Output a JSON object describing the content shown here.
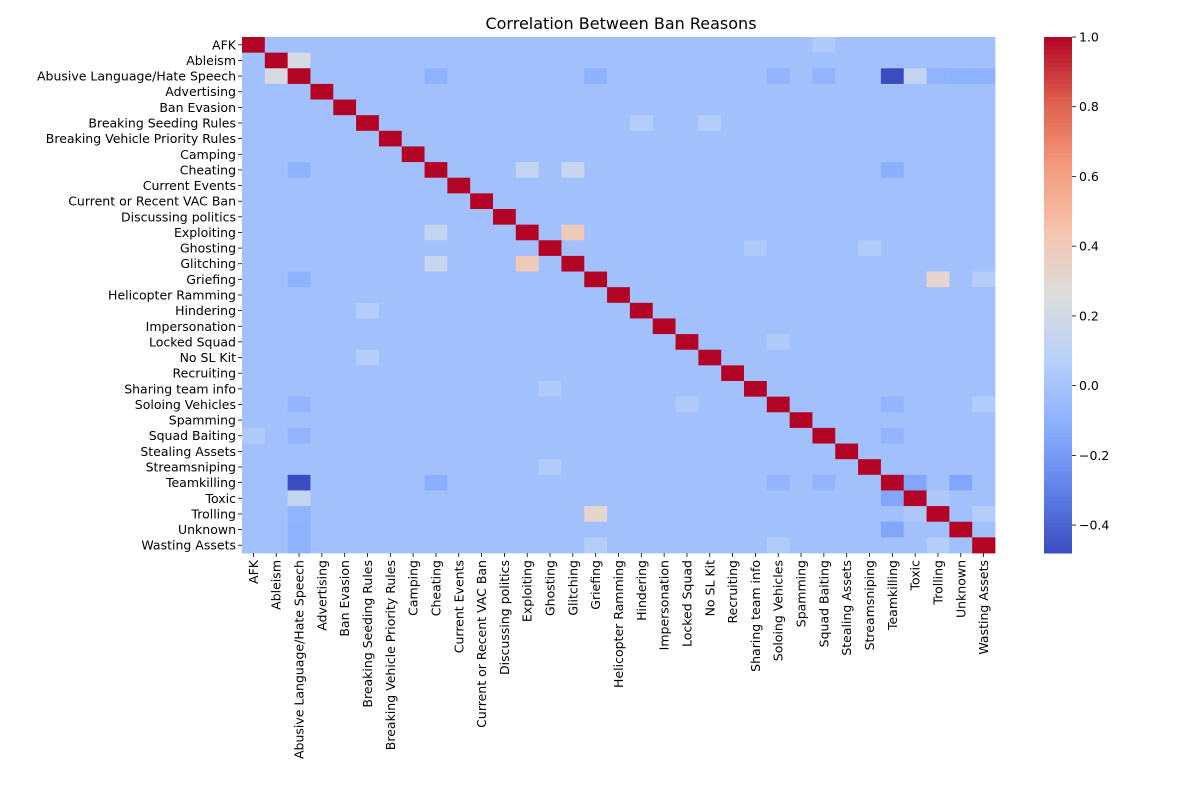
{
  "chart_data": {
    "type": "heatmap",
    "title": "Correlation Between Ban Reasons",
    "xlabel": "",
    "ylabel": "",
    "labels": [
      "AFK",
      "Ableism",
      "Abusive Language/Hate Speech",
      "Advertising",
      "Ban Evasion",
      "Breaking Seeding Rules",
      "Breaking Vehicle Priority Rules",
      "Camping",
      "Cheating",
      "Current Events",
      "Current or Recent VAC Ban",
      "Discussing politics",
      "Exploiting",
      "Ghosting",
      "Glitching",
      "Griefing",
      "Helicopter Ramming",
      "Hindering",
      "Impersonation",
      "Locked Squad",
      "No SL Kit",
      "Recruiting",
      "Sharing team info",
      "Soloing Vehicles",
      "Spamming",
      "Squad Baiting",
      "Stealing Assets",
      "Streamsniping",
      "Teamkilling",
      "Toxic",
      "Trolling",
      "Unknown",
      "Wasting Assets"
    ],
    "diagonal": 1.0,
    "default_value": -0.02,
    "notable_correlations": [
      [
        "Ableism",
        "Abusive Language/Hate Speech",
        0.22
      ],
      [
        "Abusive Language/Hate Speech",
        "Teamkilling",
        -0.48
      ],
      [
        "Abusive Language/Hate Speech",
        "Toxic",
        0.13
      ],
      [
        "Abusive Language/Hate Speech",
        "Cheating",
        -0.1
      ],
      [
        "Abusive Language/Hate Speech",
        "Griefing",
        -0.1
      ],
      [
        "Abusive Language/Hate Speech",
        "Unknown",
        -0.1
      ],
      [
        "Abusive Language/Hate Speech",
        "Wasting Assets",
        -0.1
      ],
      [
        "Abusive Language/Hate Speech",
        "Trolling",
        -0.09
      ],
      [
        "Abusive Language/Hate Speech",
        "Soloing Vehicles",
        -0.08
      ],
      [
        "Abusive Language/Hate Speech",
        "Squad Baiting",
        -0.08
      ],
      [
        "Cheating",
        "Exploiting",
        0.13
      ],
      [
        "Cheating",
        "Glitching",
        0.15
      ],
      [
        "Cheating",
        "Teamkilling",
        -0.12
      ],
      [
        "Exploiting",
        "Glitching",
        0.4
      ],
      [
        "Griefing",
        "Trolling",
        0.32
      ],
      [
        "Griefing",
        "Wasting Assets",
        0.06
      ],
      [
        "Breaking Seeding Rules",
        "Hindering",
        0.06
      ],
      [
        "Breaking Seeding Rules",
        "No SL Kit",
        0.06
      ],
      [
        "Ghosting",
        "Streamsniping",
        0.05
      ],
      [
        "Ghosting",
        "Sharing team info",
        0.04
      ],
      [
        "Teamkilling",
        "Toxic",
        -0.15
      ],
      [
        "Teamkilling",
        "Unknown",
        -0.15
      ],
      [
        "Teamkilling",
        "Soloing Vehicles",
        -0.08
      ],
      [
        "Teamkilling",
        "Squad Baiting",
        -0.08
      ],
      [
        "AFK",
        "Squad Baiting",
        0.04
      ],
      [
        "Soloing Vehicles",
        "Wasting Assets",
        0.05
      ],
      [
        "Locked Squad",
        "Soloing Vehicles",
        0.04
      ],
      [
        "Trolling",
        "Wasting Assets",
        0.06
      ],
      [
        "Toxic",
        "Trolling",
        0.03
      ]
    ],
    "colorbar": {
      "colormap": "coolwarm",
      "vmin": -0.48,
      "vmax": 1.0,
      "ticks": [
        -0.4,
        -0.2,
        0.0,
        0.2,
        0.4,
        0.6,
        0.8,
        1.0
      ],
      "tick_labels": [
        "−0.4",
        "−0.2",
        "0.0",
        "0.2",
        "0.4",
        "0.6",
        "0.8",
        "1.0"
      ]
    }
  }
}
